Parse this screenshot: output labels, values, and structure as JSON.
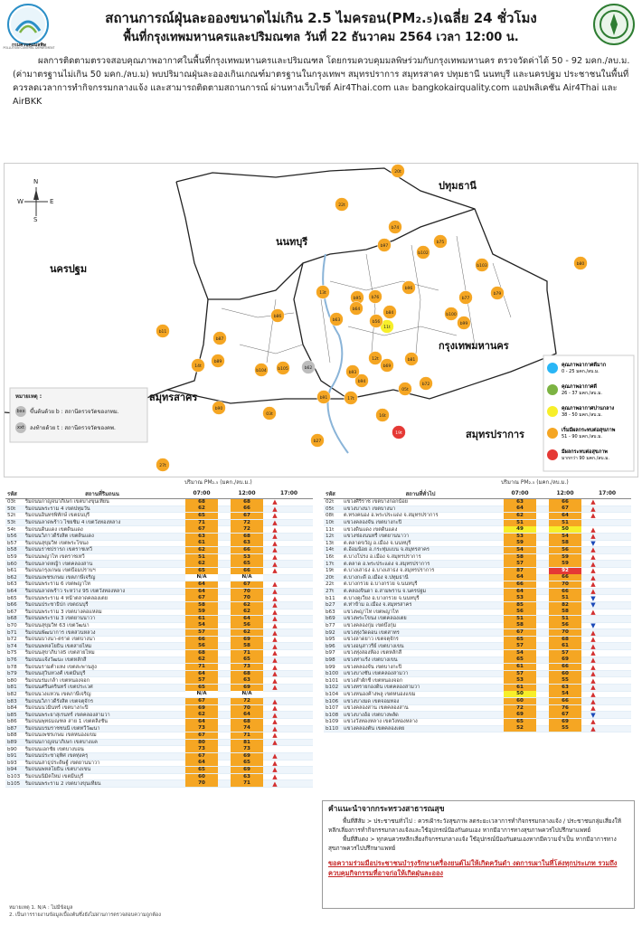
{
  "header": {
    "title": "สถานการณ์ฝุ่นละอองขนาดไม่เกิน 2.5 ไมครอน(PM₂.₅)เฉลี่ย 24 ชั่วโมง",
    "subtitle": "พื้นที่กรุงเทพมหานครและปริมณฑล วันที่ 22 ธันวาคม 2564 เวลา 12:00 น.",
    "left_logo_text": "กรมควบคุมมลพิษ",
    "left_logo_sub": "POLLUTION CONTROL DEPARTMENT"
  },
  "intro": "ผลการติดตามตรวจสอบคุณภาพอากาศในพื้นที่กรุงเทพมหานครและปริมณฑล โดยกรมควบคุมมลพิษร่วมกับกรุงเทพมหานคร ตรวจวัดค่าได้ 50 - 92 มคก./ลบ.ม. (ค่ามาตรฐานไม่เกิน 50 มคก./ลบ.ม) พบปริมาณฝุ่นละอองเกินเกณฑ์มาตรฐานในกรุงเทพฯ สมุทรปราการ สมุทรสาคร ปทุมธานี นนทบุรี และนครปฐม ประชาชนในพื้นที่ควรลดเวลาการทำกิจกรรมกลางแจ้ง และสามารถติดตามสถานการณ์ ผ่านทางเว็บไซต์ Air4Thai.com และ bangkokairquality.com แอปพลิเคชัน Air4Thai และ AirBKK",
  "map": {
    "compass": {
      "n": "N",
      "s": "S",
      "e": "E",
      "w": "W"
    },
    "provinces": [
      "ปทุมธานี",
      "นนทบุรี",
      "นครปฐม",
      "กรุงเทพมหานคร",
      "สมุทรสาคร",
      "สมุทรปราการ"
    ],
    "legend_note_title": "หมายเหตุ :",
    "legend_note_b": "ขึ้นต้นด้วย b : สถานีตรวจวัดของกทม.",
    "legend_note_t": "ลงท้ายด้วย t : สถานีตรวจวัดของคพ.",
    "legend": [
      {
        "label": "คุณภาพอากาศดีมาก",
        "range": "0 - 25 มคก./ลบ.ม.",
        "color": "#29b6f6"
      },
      {
        "label": "คุณภาพอากาศดี",
        "range": "26 - 37 มคก./ลบ.ม.",
        "color": "#7cb342"
      },
      {
        "label": "คุณภาพอากาศปานกลาง",
        "range": "38 - 50 มคก./ลบ.ม.",
        "color": "#f7ef2a"
      },
      {
        "label": "เริ่มมีผลกระทบต่อสุขภาพ",
        "range": "51 - 90 มคก./ลบ.ม.",
        "color": "#f5a623"
      },
      {
        "label": "มีผลกระทบต่อสุขภาพ",
        "range": "มากกว่า 90 มคก./ลบ.ม.",
        "color": "#e53935"
      }
    ],
    "stations": [
      {
        "id": "20t",
        "c": "#f5a623"
      },
      {
        "id": "22t",
        "c": "#f5a623"
      },
      {
        "id": "b74",
        "c": "#f5a623"
      },
      {
        "id": "b97",
        "c": "#f5a623"
      },
      {
        "id": "b75",
        "c": "#f5a623"
      },
      {
        "id": "b103",
        "c": "#f5a623"
      },
      {
        "id": "b80",
        "c": "#f5a623"
      },
      {
        "id": "b102",
        "c": "#f5a623"
      },
      {
        "id": "b96",
        "c": "#f5a623"
      },
      {
        "id": "b77",
        "c": "#f5a623"
      },
      {
        "id": "b79",
        "c": "#f5a623"
      },
      {
        "id": "13t",
        "c": "#f5a623"
      },
      {
        "id": "b95",
        "c": "#f5a623"
      },
      {
        "id": "b76",
        "c": "#f5a623"
      },
      {
        "id": "b86",
        "c": "#f5a623"
      },
      {
        "id": "b11",
        "c": "#f5a623"
      },
      {
        "id": "b87",
        "c": "#f5a623"
      },
      {
        "id": "14t",
        "c": "#f5a623"
      },
      {
        "id": "b89",
        "c": "#f5a623"
      },
      {
        "id": "b104",
        "c": "#f5a623"
      },
      {
        "id": "b90",
        "c": "#f5a623"
      },
      {
        "id": "03t",
        "c": "#f5a623"
      },
      {
        "id": "b105",
        "c": "#f5a623"
      },
      {
        "id": "b62",
        "c": "#bdbdbd"
      },
      {
        "id": "11t",
        "c": "#f7ef2a"
      },
      {
        "id": "b84",
        "c": "#f5a623"
      },
      {
        "id": "b100",
        "c": "#f5a623"
      },
      {
        "id": "b99",
        "c": "#f5a623"
      },
      {
        "id": "b72",
        "c": "#f5a623"
      },
      {
        "id": "05t",
        "c": "#f5a623"
      },
      {
        "id": "b91",
        "c": "#f5a623"
      },
      {
        "id": "17t",
        "c": "#f5a623"
      },
      {
        "id": "b94",
        "c": "#f5a623"
      },
      {
        "id": "b81",
        "c": "#f5a623"
      },
      {
        "id": "16t",
        "c": "#f5a623"
      },
      {
        "id": "19t",
        "c": "#e53935"
      },
      {
        "id": "27t",
        "c": "#f5a623"
      },
      {
        "id": "b27",
        "c": "#f5a623"
      },
      {
        "id": "b63",
        "c": "#f5a623"
      },
      {
        "id": "b56",
        "c": "#f5a623"
      },
      {
        "id": "b64",
        "c": "#f5a623"
      },
      {
        "id": "12t",
        "c": "#f5a623"
      },
      {
        "id": "b69",
        "c": "#f5a623"
      },
      {
        "id": "b93",
        "c": "#f5a623"
      }
    ]
  },
  "table": {
    "unit_label": "ปริมาณ PM₂.₅ (มคก./ลบ.ม.)",
    "headers": {
      "code": "รหัส",
      "station": "สถานที่ติดตั้ง",
      "t07": "07:00",
      "t12": "12:00",
      "t17": "17:00"
    },
    "left_header_station": "สถานที่ริมถนน",
    "right_header_station": "สถานที่ทั่วไป",
    "left_rows": [
      {
        "code": "03t",
        "name": "ริมถนนกาญจนาภิเษก เขตบางขุนเทียน",
        "a": "68",
        "b": "68",
        "t": "up"
      },
      {
        "code": "50t",
        "name": "ริมถนนพระราม 4 เขตปทุมวัน",
        "a": "62",
        "b": "66",
        "t": "up"
      },
      {
        "code": "52t",
        "name": "ริมถนนอินทรพิทักษ์ เขตธนบุรี",
        "a": "65",
        "b": "67",
        "t": "up"
      },
      {
        "code": "53t",
        "name": "ริมถนนลาดพร้าว ไชยชิม 4 เขตวังทองหลาง",
        "a": "71",
        "b": "72",
        "t": "up"
      },
      {
        "code": "54t",
        "name": "ริมถนนดินแดง เขตดินแดง",
        "a": "67",
        "b": "72",
        "t": "up"
      },
      {
        "code": "b56",
        "name": "ริมถนนวิภาวดีรังสิต เขตดินแดง",
        "a": "63",
        "b": "68",
        "t": "up"
      },
      {
        "code": "b57",
        "name": "ริมถนนสุขุมวิท เขตพระโขนง",
        "a": "61",
        "b": "63",
        "t": "up"
      },
      {
        "code": "b58",
        "name": "ริมถนนราชปรารภ เขตราชเทวี",
        "a": "62",
        "b": "66",
        "t": "up"
      },
      {
        "code": "b59",
        "name": "ริมถนนพญาไท เขตราชเทวี",
        "a": "51",
        "b": "53",
        "t": "up"
      },
      {
        "code": "b60",
        "name": "ริมถนนลาดหญ้า เขตคลองสาน",
        "a": "62",
        "b": "65",
        "t": "up"
      },
      {
        "code": "b61",
        "name": "ริมถนนกรุงเกษม เขตป้อมปราบฯ",
        "a": "65",
        "b": "66",
        "t": "up"
      },
      {
        "code": "b62",
        "name": "ริมถนนเพชรเกษม เขตภาษีเจริญ",
        "a": "N/A",
        "b": "N/A",
        "t": "none"
      },
      {
        "code": "b63",
        "name": "ริมถนนพระราม 6 เขตพญาไท",
        "a": "64",
        "b": "67",
        "t": "up"
      },
      {
        "code": "b64",
        "name": "ริมถนนลาดพร้าว ระหว่าง 95 เขตวังทองหลาง",
        "a": "64",
        "b": "70",
        "t": "up"
      },
      {
        "code": "b65",
        "name": "ริมถนนพระราม 4 หน้าตลาดคลองเตย",
        "a": "67",
        "b": "70",
        "t": "up"
      },
      {
        "code": "b66",
        "name": "ริมถนนประชาธิปก เขตธนบุรี",
        "a": "58",
        "b": "62",
        "t": "up"
      },
      {
        "code": "b67",
        "name": "ริมถนนพระราม 3 เขตบางคอแหลม",
        "a": "59",
        "b": "62",
        "t": "up"
      },
      {
        "code": "b68",
        "name": "ริมถนนพระราม 3 เขตยานนาวา",
        "a": "61",
        "b": "64",
        "t": "up"
      },
      {
        "code": "b70",
        "name": "ริมถนนสุขุมวิท 63 เขตวัฒนา",
        "a": "54",
        "b": "56",
        "t": "up"
      },
      {
        "code": "b71",
        "name": "ริมถนนพัฒนาการ เขตสวนหลวง",
        "a": "57",
        "b": "62",
        "t": "up"
      },
      {
        "code": "b72",
        "name": "ริมถนนบางนา-ตราด เขตบางนา",
        "a": "66",
        "b": "69",
        "t": "up"
      },
      {
        "code": "b74",
        "name": "ริมถนนพหลโยธิน เขตสายไหม",
        "a": "56",
        "b": "58",
        "t": "up"
      },
      {
        "code": "b75",
        "name": "ริมถนนสุขาภิบาล5 เขตสายไหม",
        "a": "68",
        "b": "71",
        "t": "up"
      },
      {
        "code": "b76",
        "name": "ริมถนนแจ้งวัฒนะ เขตหลักสี่",
        "a": "62",
        "b": "65",
        "t": "up"
      },
      {
        "code": "b78",
        "name": "ริมถนนรามคำแหง เขตสะพานสูง",
        "a": "71",
        "b": "73",
        "t": "up"
      },
      {
        "code": "b79",
        "name": "ริมถนนสุวินทวงศ์ เขตมีนบุรี",
        "a": "64",
        "b": "68",
        "t": "up"
      },
      {
        "code": "b80",
        "name": "ริมถนนร่มเกล้า เขตหนองจอก",
        "a": "57",
        "b": "63",
        "t": "up"
      },
      {
        "code": "b81",
        "name": "ริมถนนศรีนครินทร์ เขตประเวศ",
        "a": "65",
        "b": "69",
        "t": "up"
      },
      {
        "code": "b82",
        "name": "ริมถนนวงแหวน เขตภาษีเจริญ",
        "a": "N/A",
        "b": "N/A",
        "t": "none"
      },
      {
        "code": "b83",
        "name": "ริมถนนวิภาวดีรังสิต เขตจตุจักร",
        "a": "67",
        "b": "72",
        "t": "up"
      },
      {
        "code": "b84",
        "name": "ริมถนนนวมินทร์ เขตบางกะปิ",
        "a": "69",
        "b": "70",
        "t": "up"
      },
      {
        "code": "b85",
        "name": "ริมถนนพระยาสุเรนทร์ เขตคลองสามวา",
        "a": "62",
        "b": "64",
        "t": "up"
      },
      {
        "code": "b86",
        "name": "ริมถนนพุทธมณฑล สาย 1 เขตตลิ่งชัน",
        "a": "64",
        "b": "68",
        "t": "up"
      },
      {
        "code": "b87",
        "name": "ริมถนนบรมราชชนนี เขตทวีวัฒนา",
        "a": "73",
        "b": "74",
        "t": "up"
      },
      {
        "code": "b88",
        "name": "ริมถนนเพชรเกษม เขตหนองแขม",
        "a": "67",
        "b": "71",
        "t": "up"
      },
      {
        "code": "b89",
        "name": "ริมถนนกาญจนาภิเษก เขตบางแค",
        "a": "80",
        "b": "81",
        "t": "up"
      },
      {
        "code": "b90",
        "name": "ริมถนนเอกชัย เขตบางบอน",
        "a": "73",
        "b": "73",
        "t": "none"
      },
      {
        "code": "b91",
        "name": "ริมถนนประชาอุทิศ เขตทุ่งครุ",
        "a": "67",
        "b": "69",
        "t": "up"
      },
      {
        "code": "b93",
        "name": "ริมถนนสาธุประดิษฐ์ เขตยานนาวา",
        "a": "64",
        "b": "65",
        "t": "up"
      },
      {
        "code": "b94",
        "name": "ริมถนนพหลโยธิน เขตบางเขน",
        "a": "65",
        "b": "69",
        "t": "up"
      },
      {
        "code": "b103",
        "name": "ริมถนนนิมิตใหม่ เขตมีนบุรี",
        "a": "60",
        "b": "63",
        "t": "up"
      },
      {
        "code": "b105",
        "name": "ริมถนนพระราม 2 เขตบางขุนเทียน",
        "a": "70",
        "b": "71",
        "t": "up"
      }
    ],
    "right_rows": [
      {
        "code": "02t",
        "name": "แขวงศิริราช เขตบางกอกน้อย",
        "a": "63",
        "b": "66",
        "t": "up"
      },
      {
        "code": "05t",
        "name": "แขวงบางนา เขตบางนา",
        "a": "64",
        "b": "67",
        "t": "up"
      },
      {
        "code": "08t",
        "name": "ต.ทรงคนอง อ.พระประแดง จ.สมุทรปราการ",
        "a": "62",
        "b": "64",
        "t": "up"
      },
      {
        "code": "10t",
        "name": "แขวงคลองจั่น เขตบางกะปิ",
        "a": "51",
        "b": "51",
        "t": "none"
      },
      {
        "code": "11t",
        "name": "แขวงดินแดง เขตดินแดง",
        "a": "49",
        "b": "50",
        "t": "up"
      },
      {
        "code": "12t",
        "name": "แขวงช่องนนทรี เขตยานนาวา",
        "a": "53",
        "b": "54",
        "t": "up"
      },
      {
        "code": "13t",
        "name": "ต.ตลาดขวัญ อ.เมือง จ.นนทบุรี",
        "a": "59",
        "b": "58",
        "t": "dn"
      },
      {
        "code": "14t",
        "name": "ต.อ้อมน้อย อ.กระทุ่มแบน จ.สมุทรสาคร",
        "a": "54",
        "b": "56",
        "t": "up"
      },
      {
        "code": "16t",
        "name": "ต.บางโปรง อ.เมือง จ.สมุทรปราการ",
        "a": "58",
        "b": "59",
        "t": "up"
      },
      {
        "code": "17t",
        "name": "ต.ตลาด อ.พระประแดง จ.สมุทรปราการ",
        "a": "57",
        "b": "59",
        "t": "up"
      },
      {
        "code": "19t",
        "name": "ต.บางเสาธง อ.บางเสาธง จ.สมุทรปราการ",
        "a": "87",
        "b": "92",
        "t": "up"
      },
      {
        "code": "20t",
        "name": "ต.บางกะดี อ.เมือง จ.ปทุมธานี",
        "a": "64",
        "b": "66",
        "t": "up"
      },
      {
        "code": "22t",
        "name": "ต.บางกรวย อ.บางกรวย จ.นนทบุรี",
        "a": "66",
        "b": "70",
        "t": "up"
      },
      {
        "code": "27t",
        "name": "ต.คลองจินดา อ.สามพราน จ.นครปฐม",
        "a": "64",
        "b": "66",
        "t": "up"
      },
      {
        "code": "b11",
        "name": "ต.บางคูเวียง อ.บางกรวย จ.นนทบุรี",
        "a": "53",
        "b": "51",
        "t": "dn"
      },
      {
        "code": "b27",
        "name": "ต.ท่าข้าม อ.เมือง จ.สมุทรสาคร",
        "a": "85",
        "b": "82",
        "t": "dn"
      },
      {
        "code": "b63",
        "name": "แขวงพญาไท เขตพญาไท",
        "a": "56",
        "b": "58",
        "t": "up"
      },
      {
        "code": "b69",
        "name": "แขวงพระโขนง เขตคลองเตย",
        "a": "51",
        "b": "51",
        "t": "none"
      },
      {
        "code": "b77",
        "name": "แขวงคลองกุ่ม เขตบึงกุ่ม",
        "a": "58",
        "b": "56",
        "t": "dn"
      },
      {
        "code": "b92",
        "name": "แขวงทุ่งวัดดอน เขตสาทร",
        "a": "67",
        "b": "70",
        "t": "up"
      },
      {
        "code": "b95",
        "name": "แขวงลาดยาว เขตจตุจักร",
        "a": "65",
        "b": "68",
        "t": "up"
      },
      {
        "code": "b96",
        "name": "แขวงอนุสาวรีย์ เขตบางเขน",
        "a": "57",
        "b": "61",
        "t": "up"
      },
      {
        "code": "b97",
        "name": "แขวงทุ่งสองห้อง เขตหลักสี่",
        "a": "54",
        "b": "57",
        "t": "up"
      },
      {
        "code": "b98",
        "name": "แขวงท่าแร้ง เขตบางเขน",
        "a": "65",
        "b": "69",
        "t": "up"
      },
      {
        "code": "b99",
        "name": "แขวงคลองจั่น เขตบางกะปิ",
        "a": "61",
        "b": "66",
        "t": "up"
      },
      {
        "code": "b100",
        "name": "แขวงบางชัน เขตคลองสามวา",
        "a": "57",
        "b": "60",
        "t": "up"
      },
      {
        "code": "b101",
        "name": "แขวงลำผักชี เขตหนองจอก",
        "a": "53",
        "b": "55",
        "t": "up"
      },
      {
        "code": "b102",
        "name": "แขวงทรายกองดิน เขตคลองสามวา",
        "a": "61",
        "b": "63",
        "t": "up"
      },
      {
        "code": "b104",
        "name": "แขวงหนองค้างพลู เขตหนองแขม",
        "a": "50",
        "b": "54",
        "t": "up"
      },
      {
        "code": "b106",
        "name": "แขวงบางมด เขตจอมทอง",
        "a": "60",
        "b": "66",
        "t": "up"
      },
      {
        "code": "b107",
        "name": "แขวงคลองสาน เขตคลองสาน",
        "a": "72",
        "b": "76",
        "t": "up"
      },
      {
        "code": "b108",
        "name": "แขวงบางอ้อ เขตบางพลัด",
        "a": "69",
        "b": "67",
        "t": "dn"
      },
      {
        "code": "b109",
        "name": "แขวงวังทองหลาง เขตวังทองหลาง",
        "a": "65",
        "b": "69",
        "t": "up"
      },
      {
        "code": "b110",
        "name": "แขวงคลองตัน เขตคลองเตย",
        "a": "52",
        "b": "55",
        "t": "up"
      }
    ],
    "notes": [
      "หมายเหตุ 1. N/A : ไม่มีข้อมูล",
      "2. เป็นการรายงานข้อมูลเบื้องต้นซึ่งยังไม่ผ่านการตรวจสอบความถูกต้อง"
    ]
  },
  "advice": {
    "title": "คำแนะนำจากกระทรวงสาธารณสุข",
    "p1": "พื้นที่สีส้ม > ประชาชนทั่วไป : ควรเฝ้าระวังสุขภาพ ลดระยะเวลาการทำกิจกรรมกลางแจ้ง / ประชาชนกลุ่มเสี่ยงให้หลีกเลี่ยงการทำกิจกรรมกลางแจ้งและใช้อุปกรณ์ป้องกันตนเอง หากมีอาการทางสุขภาพควรไปปรึกษาแพทย์",
    "p2": "พื้นที่สีแดง > ทุกคนควรหลีกเลี่ยงกิจกรรมกลางแจ้ง ใช้อุปกรณ์ป้องกันตนเองหากมีความจำเป็น หากมีอาการทางสุขภาพควรไปปรึกษาแพทย์",
    "warning": "ขอความร่วมมือประชาชนบำรุงรักษาเครื่องยนต์ไม่ให้เกิดควันดำ งดการเผาในที่โล่งทุกประเภท รวมถึงควบคุมกิจกรรมที่อาจก่อให้เกิดฝุ่นละออง"
  }
}
